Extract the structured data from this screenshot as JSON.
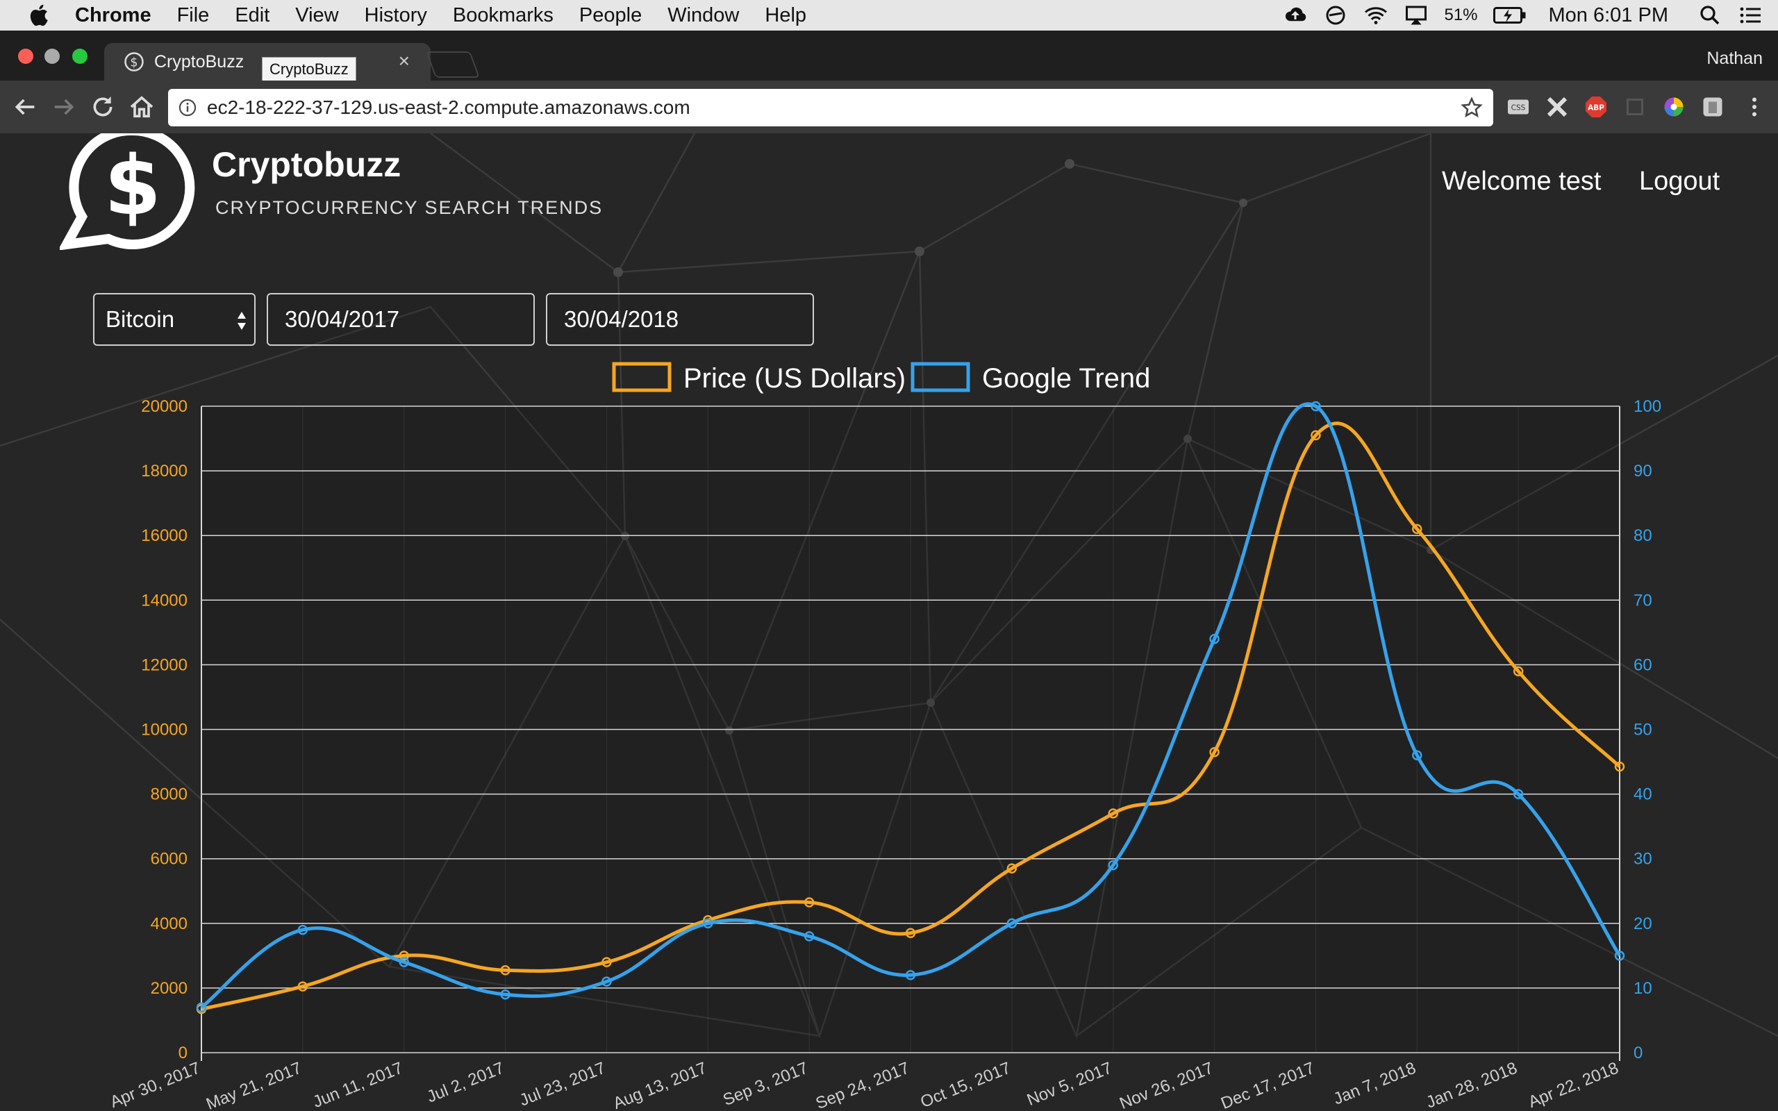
{
  "menubar": {
    "app_name": "Chrome",
    "items": [
      "File",
      "Edit",
      "View",
      "History",
      "Bookmarks",
      "People",
      "Window",
      "Help"
    ],
    "battery": "51%",
    "clock": "Mon 6:01 PM"
  },
  "browser": {
    "tab_title": "CryptoBuzz",
    "tooltip": "CryptoBuzz",
    "profile_name": "Nathan",
    "url": "ec2-18-222-37-129.us-east-2.compute.amazonaws.com"
  },
  "site": {
    "brand": "Cryptobuzz",
    "tagline": "CRYPTOCURRENCY SEARCH TRENDS",
    "welcome": "Welcome test",
    "logout": "Logout"
  },
  "filters": {
    "coin": "Bitcoin",
    "from_date": "30/04/2017",
    "to_date": "30/04/2018"
  },
  "chart_data": {
    "type": "line",
    "categories": [
      "Apr 30, 2017",
      "May 21, 2017",
      "Jun 11, 2017",
      "Jul 2, 2017",
      "Jul 23, 2017",
      "Aug 13, 2017",
      "Sep 3, 2017",
      "Sep 24, 2017",
      "Oct 15, 2017",
      "Nov 5, 2017",
      "Nov 26, 2017",
      "Dec 17, 2017",
      "Jan 7, 2018",
      "Jan 28, 2018",
      "Apr 22, 2018"
    ],
    "series": [
      {
        "name": "Price (US Dollars)",
        "axis": "left",
        "color": "#f5a623",
        "values": [
          1350,
          2050,
          3000,
          2550,
          2800,
          4100,
          4650,
          3700,
          5700,
          7400,
          9300,
          19100,
          16200,
          11800,
          8850
        ]
      },
      {
        "name": "Google Trend",
        "axis": "right",
        "color": "#36a2eb",
        "values": [
          7,
          19,
          14,
          9,
          11,
          20,
          18,
          12,
          20,
          29,
          64,
          100,
          46,
          40,
          15
        ]
      }
    ],
    "y_left": {
      "min": 0,
      "max": 20000,
      "ticks": [
        "0",
        "2000",
        "4000",
        "6000",
        "8000",
        "10000",
        "12000",
        "14000",
        "16000",
        "18000",
        "20000"
      ],
      "color": "#f5a623"
    },
    "y_right": {
      "min": 0,
      "max": 100,
      "ticks": [
        "0",
        "10",
        "20",
        "30",
        "40",
        "50",
        "60",
        "70",
        "80",
        "90",
        "100"
      ],
      "color": "#36a2eb"
    },
    "grid": true,
    "legend": "top-center"
  }
}
